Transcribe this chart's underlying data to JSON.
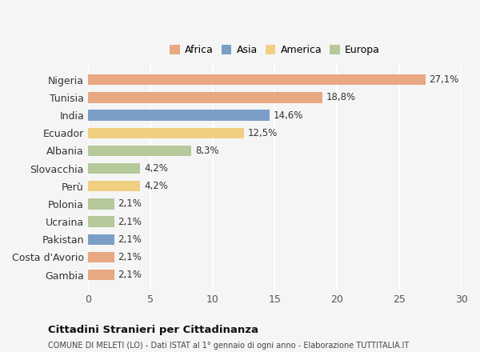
{
  "categories": [
    "Nigeria",
    "Tunisia",
    "India",
    "Ecuador",
    "Albania",
    "Slovacchia",
    "Perù",
    "Polonia",
    "Ucraina",
    "Pakistan",
    "Costa d'Avorio",
    "Gambia"
  ],
  "values": [
    27.1,
    18.8,
    14.6,
    12.5,
    8.3,
    4.2,
    4.2,
    2.1,
    2.1,
    2.1,
    2.1,
    2.1
  ],
  "labels": [
    "27,1%",
    "18,8%",
    "14,6%",
    "12,5%",
    "8,3%",
    "4,2%",
    "4,2%",
    "2,1%",
    "2,1%",
    "2,1%",
    "2,1%",
    "2,1%"
  ],
  "continent": [
    "Africa",
    "Africa",
    "Asia",
    "America",
    "Europa",
    "Europa",
    "America",
    "Europa",
    "Europa",
    "Asia",
    "Africa",
    "Africa"
  ],
  "colors": {
    "Africa": "#E8A882",
    "Asia": "#7B9EC7",
    "America": "#F0D080",
    "Europa": "#B5C99A"
  },
  "legend_order": [
    "Africa",
    "Asia",
    "America",
    "Europa"
  ],
  "bar_colors": [
    "#E8A882",
    "#E8A882",
    "#7B9EC7",
    "#F0D080",
    "#B5C99A",
    "#B5C99A",
    "#F0D080",
    "#B5C99A",
    "#B5C99A",
    "#7B9EC7",
    "#E8A882",
    "#E8A882"
  ],
  "xlim": [
    0,
    30
  ],
  "xticks": [
    0,
    5,
    10,
    15,
    20,
    25,
    30
  ],
  "title": "Cittadini Stranieri per Cittadinanza",
  "subtitle": "COMUNE DI MELETI (LO) - Dati ISTAT al 1° gennaio di ogni anno - Elaborazione TUTTITALIA.IT",
  "bg_color": "#f5f5f5",
  "grid_color": "#ffffff"
}
